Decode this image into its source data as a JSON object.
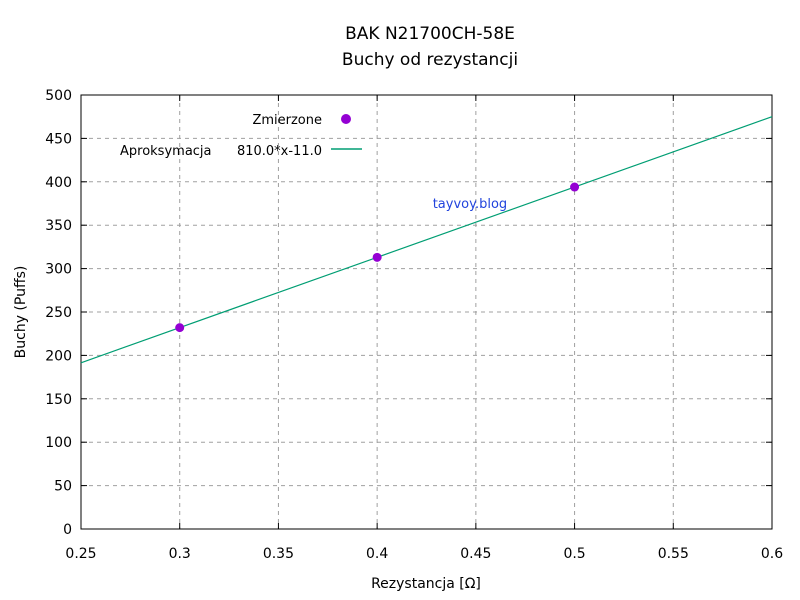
{
  "chart_data": {
    "type": "scatter",
    "title": [
      "BAK N21700CH-58E",
      "Buchy od rezystancji"
    ],
    "xlabel": "Rezystancja [Ω]",
    "ylabel": "Buchy (Puffs)",
    "xlim": [
      0.25,
      0.6
    ],
    "ylim": [
      0,
      500
    ],
    "xticks": [
      "0.25",
      "0.3",
      "0.35",
      "0.4",
      "0.45",
      "0.5",
      "0.55",
      "0.6"
    ],
    "yticks": [
      "0",
      "50",
      "100",
      "150",
      "200",
      "250",
      "300",
      "350",
      "400",
      "450",
      "500"
    ],
    "grid": true,
    "legend_position": "top-left",
    "series": [
      {
        "name": "Zmierzone",
        "kind": "points",
        "color": "#9400d3",
        "x": [
          0.3,
          0.4,
          0.5
        ],
        "y": [
          232,
          313,
          394
        ]
      },
      {
        "name": "810.0*x-11.0",
        "kind": "line",
        "color": "#009e73",
        "slope": 810.0,
        "intercept": -11.0
      }
    ],
    "annotations": [
      {
        "text": "Aproksymacja",
        "location": "legend, left of fit entry"
      },
      {
        "text": "tayvoy.blog",
        "x": 0.447,
        "y": 370,
        "color": "#2244dd"
      }
    ]
  }
}
